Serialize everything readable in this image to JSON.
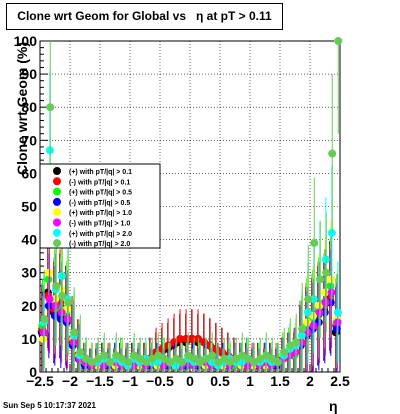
{
  "chart_data": {
    "type": "scatter",
    "title": "Clone wrt Geom for Global vs   η at pT > 0.11",
    "xlabel": "η",
    "ylabel": "Clone wrt Geom (%)",
    "xlim": [
      -2.5,
      2.5
    ],
    "ylim": [
      0,
      100
    ],
    "x_ticks": [
      "−2.5",
      "−2",
      "−1.5",
      "−1",
      "−0.5",
      "0",
      "0.5",
      "1",
      "1.5",
      "2",
      "2.5"
    ],
    "y_ticks": [
      "0",
      "10",
      "20",
      "30",
      "40",
      "50",
      "60",
      "70",
      "80",
      "90",
      "100"
    ],
    "grid": true,
    "legend_position": "left-middle",
    "x_bin_centers": [
      -2.45,
      -2.35,
      -2.25,
      -2.15,
      -2.05,
      -1.95,
      -1.85,
      -1.75,
      -1.65,
      -1.55,
      -1.45,
      -1.35,
      -1.25,
      -1.15,
      -1.05,
      -0.95,
      -0.85,
      -0.75,
      -0.65,
      -0.55,
      -0.45,
      -0.35,
      -0.25,
      -0.15,
      -0.05,
      0.05,
      0.15,
      0.25,
      0.35,
      0.45,
      0.55,
      0.65,
      0.75,
      0.85,
      0.95,
      1.05,
      1.15,
      1.25,
      1.35,
      1.45,
      1.55,
      1.65,
      1.75,
      1.85,
      1.95,
      2.05,
      2.15,
      2.25,
      2.35,
      2.45
    ],
    "series": [
      {
        "name": "(+) with pT/|q| > 0.1",
        "color": "#000000",
        "values": [
          12,
          24,
          18,
          20,
          17,
          9,
          5,
          3,
          2,
          2,
          3,
          2,
          2,
          3,
          2,
          3,
          2,
          3,
          4,
          5,
          6,
          7,
          8,
          9,
          9,
          10,
          9,
          9,
          8,
          7,
          6,
          5,
          4,
          3,
          3,
          2,
          3,
          2,
          3,
          2,
          4,
          5,
          5,
          8,
          12,
          14,
          17,
          19,
          23,
          12
        ]
      },
      {
        "name": "(-) with pT/|q| > 0.1",
        "color": "#ff0000",
        "values": [
          13,
          23,
          19,
          21,
          16,
          10,
          5,
          3,
          2,
          3,
          2,
          3,
          2,
          2,
          3,
          2,
          3,
          3,
          4,
          6,
          7,
          8,
          9,
          10,
          10,
          10,
          10,
          9,
          8,
          7,
          6,
          5,
          4,
          3,
          2,
          3,
          2,
          3,
          2,
          3,
          4,
          5,
          6,
          9,
          13,
          15,
          18,
          20,
          22,
          14
        ]
      },
      {
        "name": "(+) with pT/|q| > 0.5",
        "color": "#00ff00",
        "values": [
          14,
          28,
          21,
          19,
          18,
          8,
          4,
          3,
          2,
          3,
          3,
          2,
          3,
          4,
          3,
          2,
          3,
          2,
          3,
          3,
          4,
          3,
          2,
          3,
          3,
          2,
          4,
          3,
          3,
          3,
          2,
          3,
          2,
          3,
          4,
          2,
          3,
          3,
          2,
          3,
          5,
          6,
          5,
          9,
          14,
          16,
          19,
          21,
          26,
          15
        ]
      },
      {
        "name": "(-) with pT/|q| > 0.5",
        "color": "#0000ff",
        "values": [
          11,
          20,
          17,
          16,
          15,
          8,
          4,
          2,
          2,
          2,
          3,
          2,
          3,
          2,
          2,
          3,
          2,
          3,
          2,
          3,
          3,
          2,
          3,
          3,
          2,
          3,
          2,
          3,
          3,
          2,
          3,
          2,
          3,
          2,
          3,
          2,
          2,
          3,
          3,
          2,
          4,
          5,
          6,
          8,
          11,
          13,
          15,
          18,
          21,
          13
        ]
      },
      {
        "name": "(+) with pT/|q| > 1.0",
        "color": "#ffff00",
        "values": [
          10,
          30,
          22,
          25,
          19,
          10,
          5,
          3,
          3,
          2,
          3,
          3,
          2,
          3,
          2,
          3,
          2,
          3,
          3,
          2,
          3,
          3,
          2,
          3,
          3,
          2,
          3,
          2,
          3,
          3,
          2,
          3,
          3,
          2,
          3,
          2,
          3,
          2,
          3,
          3,
          5,
          6,
          7,
          10,
          15,
          17,
          20,
          24,
          28,
          16
        ]
      },
      {
        "name": "(-) with pT/|q| > 1.0",
        "color": "#ff00ff",
        "values": [
          12,
          22,
          20,
          18,
          16,
          9,
          4,
          3,
          2,
          3,
          2,
          3,
          3,
          2,
          3,
          2,
          3,
          2,
          3,
          3,
          2,
          3,
          3,
          2,
          3,
          2,
          3,
          3,
          2,
          3,
          3,
          2,
          3,
          3,
          2,
          3,
          2,
          3,
          2,
          3,
          4,
          5,
          6,
          9,
          12,
          14,
          18,
          21,
          24,
          15
        ]
      },
      {
        "name": "(+) with pT/|q| > 2.0",
        "color": "#00ffff",
        "values": [
          15,
          67,
          25,
          29,
          22,
          11,
          5,
          4,
          3,
          3,
          4,
          3,
          4,
          3,
          2,
          4,
          3,
          4,
          3,
          3,
          4,
          3,
          2,
          3,
          4,
          3,
          3,
          4,
          3,
          2,
          3,
          4,
          3,
          3,
          4,
          3,
          3,
          4,
          3,
          3,
          5,
          7,
          8,
          11,
          18,
          22,
          28,
          34,
          42,
          18
        ]
      },
      {
        "name": "(-) with pT/|q| > 2.0",
        "color": "#66cc55",
        "values": [
          16,
          80,
          26,
          23,
          21,
          12,
          6,
          4,
          3,
          4,
          5,
          3,
          5,
          4,
          3,
          5,
          4,
          3,
          4,
          5,
          4,
          3,
          4,
          3,
          5,
          4,
          3,
          4,
          5,
          3,
          4,
          3,
          4,
          5,
          4,
          3,
          4,
          5,
          4,
          3,
          6,
          8,
          9,
          13,
          22,
          39,
          28,
          30,
          66,
          100
        ]
      }
    ]
  },
  "footer": {
    "date": "Sun Sep  5 10:17:37 2021"
  }
}
